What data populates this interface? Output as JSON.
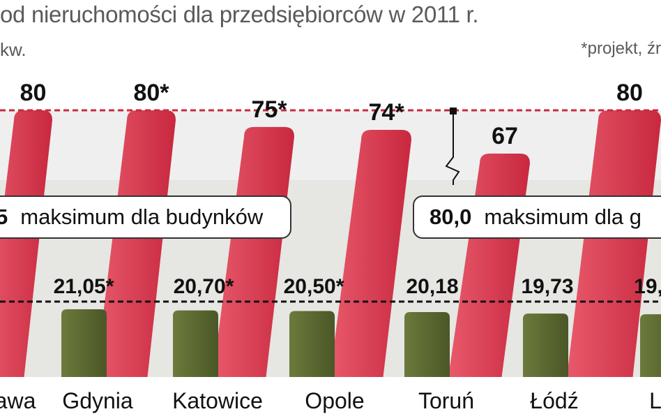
{
  "header": {
    "title": "od nieruchomości dla przedsiębiorców w 2011 r.",
    "unit": "kw.",
    "note": "*projekt, źr"
  },
  "callouts": {
    "left": {
      "value": "5",
      "label": "maksimum dla budynków"
    },
    "right": {
      "value": "80,0",
      "label": "maksimum dla g"
    }
  },
  "chart_data": {
    "type": "bar",
    "categories": [
      "awa",
      "Gdynia",
      "Katowice",
      "Opole",
      "Toruń",
      "Łódź",
      "L"
    ],
    "series": [
      {
        "values": [
          80,
          80,
          75,
          74,
          80,
          67,
          80
        ],
        "labels": [
          "80",
          "80*",
          "75*",
          "74*",
          "",
          "67",
          "80"
        ]
      },
      {
        "values": [
          null,
          21.05,
          20.7,
          20.5,
          20.18,
          19.73,
          19.5
        ],
        "labels": [
          "",
          "21,05*",
          "20,70*",
          "20,50*",
          "20,18",
          "19,73",
          "19,"
        ]
      }
    ],
    "reference_lines": [
      80.0,
      22.82
    ],
    "colors": {
      "red": "#d63a4f",
      "red_light": "#ea6f80",
      "green": "#5c6b33",
      "green_dark": "#3f4a22",
      "dashed": "#c82a3e"
    }
  }
}
